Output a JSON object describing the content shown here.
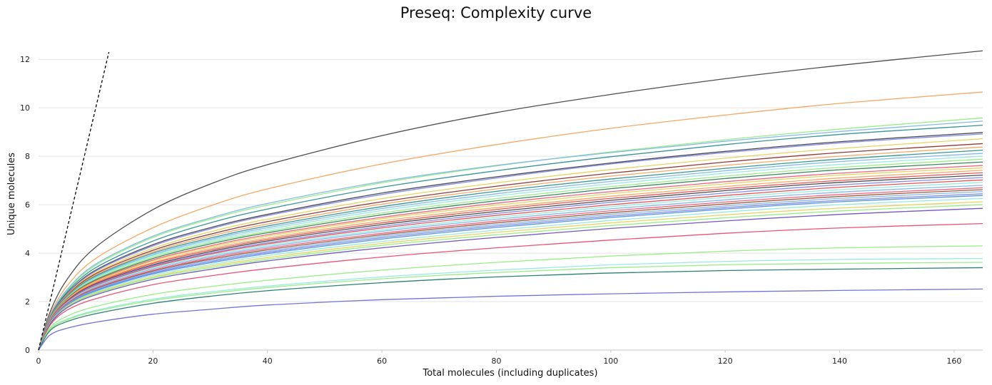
{
  "chart_data": {
    "type": "line",
    "title": "Preseq: Complexity curve",
    "xlabel": "Total molecules (including duplicates)",
    "ylabel": "Unique molecules",
    "xlim": [
      0,
      165
    ],
    "ylim": [
      0,
      12.8
    ],
    "xticks": [
      0,
      20,
      40,
      60,
      80,
      100,
      120,
      140,
      160
    ],
    "yticks": [
      0,
      2,
      4,
      6,
      8,
      10,
      12
    ],
    "grid": "horizontal",
    "x": [
      0,
      2,
      5,
      10,
      20,
      30,
      40,
      60,
      80,
      100,
      120,
      140,
      165
    ],
    "reference_line": {
      "style": "dashed",
      "color": "#000000",
      "x": [
        0,
        12.3
      ],
      "y": [
        0,
        12.3
      ]
    },
    "series": [
      {
        "color": "#444444",
        "values": [
          0,
          1.56,
          2.92,
          4.25,
          5.8,
          6.85,
          7.65,
          8.85,
          9.8,
          10.55,
          11.2,
          11.75,
          12.35
        ]
      },
      {
        "color": "#f7a35c",
        "values": [
          0,
          1.45,
          2.65,
          3.78,
          5.05,
          5.95,
          6.65,
          7.68,
          8.48,
          9.15,
          9.7,
          10.18,
          10.65
        ]
      },
      {
        "color": "#90ed7d",
        "values": [
          0,
          1.38,
          2.45,
          3.5,
          4.65,
          5.4,
          5.98,
          6.9,
          7.6,
          8.18,
          8.68,
          9.12,
          9.58
        ]
      },
      {
        "color": "#7cb5ec",
        "values": [
          0,
          1.4,
          2.5,
          3.55,
          4.7,
          5.45,
          6.05,
          6.95,
          7.62,
          8.15,
          8.62,
          9.02,
          9.45
        ]
      },
      {
        "color": "#2b908f",
        "values": [
          0,
          1.36,
          2.4,
          3.4,
          4.5,
          5.25,
          5.82,
          6.72,
          7.4,
          7.98,
          8.48,
          8.9,
          9.28
        ]
      },
      {
        "color": "#434348",
        "values": [
          0,
          1.34,
          2.34,
          3.3,
          4.35,
          5.05,
          5.6,
          6.48,
          7.15,
          7.72,
          8.2,
          8.6,
          8.98
        ]
      },
      {
        "color": "#8085e9",
        "values": [
          0,
          1.33,
          2.32,
          3.26,
          4.3,
          5.0,
          5.55,
          6.42,
          7.1,
          7.68,
          8.15,
          8.55,
          8.92
        ]
      },
      {
        "color": "#e4d354",
        "values": [
          0,
          1.31,
          2.28,
          3.2,
          4.2,
          4.88,
          5.4,
          6.25,
          6.9,
          7.45,
          7.92,
          8.32,
          8.72
        ]
      },
      {
        "color": "#8b2e2e",
        "values": [
          0,
          1.3,
          2.25,
          3.15,
          4.12,
          4.78,
          5.3,
          6.12,
          6.76,
          7.3,
          7.76,
          8.15,
          8.52
        ]
      },
      {
        "color": "#f7a35c",
        "values": [
          0,
          1.29,
          2.22,
          3.1,
          4.05,
          4.7,
          5.2,
          6.02,
          6.65,
          7.18,
          7.62,
          8.0,
          8.38
        ]
      },
      {
        "color": "#2b908f",
        "values": [
          0,
          1.28,
          2.2,
          3.06,
          4.0,
          4.62,
          5.12,
          5.92,
          6.55,
          7.06,
          7.5,
          7.88,
          8.25
        ]
      },
      {
        "color": "#7cb5ec",
        "values": [
          0,
          1.27,
          2.18,
          3.02,
          3.94,
          4.56,
          5.05,
          5.84,
          6.45,
          6.96,
          7.4,
          7.78,
          8.12
        ]
      },
      {
        "color": "#91e8e1",
        "values": [
          0,
          1.26,
          2.16,
          2.98,
          3.9,
          4.5,
          4.98,
          5.76,
          6.36,
          6.86,
          7.3,
          7.66,
          8.0
        ]
      },
      {
        "color": "#90ed7d",
        "values": [
          0,
          1.25,
          2.14,
          2.94,
          3.84,
          4.44,
          4.9,
          5.66,
          6.25,
          6.75,
          7.18,
          7.54,
          7.88
        ]
      },
      {
        "color": "#2e7d4f",
        "values": [
          0,
          1.24,
          2.12,
          2.9,
          3.78,
          4.38,
          4.84,
          5.58,
          6.16,
          6.66,
          7.08,
          7.44,
          7.76
        ]
      },
      {
        "color": "#f15c80",
        "values": [
          0,
          1.23,
          2.1,
          2.86,
          3.72,
          4.3,
          4.76,
          5.48,
          6.06,
          6.54,
          6.95,
          7.3,
          7.62
        ]
      },
      {
        "color": "#e4d354",
        "values": [
          0,
          1.22,
          2.08,
          2.83,
          3.68,
          4.25,
          4.7,
          5.42,
          5.98,
          6.46,
          6.86,
          7.22,
          7.52
        ]
      },
      {
        "color": "#f7a35c",
        "values": [
          0,
          1.21,
          2.06,
          2.8,
          3.62,
          4.18,
          4.62,
          5.33,
          5.88,
          6.35,
          6.75,
          7.1,
          7.42
        ]
      },
      {
        "color": "#e84a4a",
        "values": [
          0,
          1.2,
          2.04,
          2.76,
          3.58,
          4.12,
          4.56,
          5.25,
          5.8,
          6.26,
          6.66,
          7.0,
          7.32
        ]
      },
      {
        "color": "#434348",
        "values": [
          0,
          1.19,
          2.02,
          2.73,
          3.52,
          4.06,
          4.5,
          5.18,
          5.72,
          6.18,
          6.58,
          6.92,
          7.22
        ]
      },
      {
        "color": "#8085e9",
        "values": [
          0,
          1.18,
          2.0,
          2.7,
          3.48,
          4.0,
          4.43,
          5.1,
          5.64,
          6.1,
          6.48,
          6.82,
          7.12
        ]
      },
      {
        "color": "#e84a4a",
        "values": [
          0,
          1.17,
          1.98,
          2.66,
          3.44,
          3.96,
          4.38,
          5.04,
          5.56,
          6.0,
          6.38,
          6.72,
          7.02
        ]
      },
      {
        "color": "#91e8e1",
        "values": [
          0,
          1.16,
          1.96,
          2.63,
          3.4,
          3.9,
          4.32,
          4.96,
          5.48,
          5.92,
          6.3,
          6.62,
          6.92
        ]
      },
      {
        "color": "#7cb5ec",
        "values": [
          0,
          1.15,
          1.94,
          2.6,
          3.35,
          3.85,
          4.26,
          4.9,
          5.4,
          5.83,
          6.2,
          6.52,
          6.8
        ]
      },
      {
        "color": "#f15c80",
        "values": [
          0,
          1.14,
          1.92,
          2.56,
          3.3,
          3.8,
          4.2,
          4.82,
          5.32,
          5.75,
          6.11,
          6.42,
          6.7
        ]
      },
      {
        "color": "#a0522d",
        "values": [
          0,
          1.13,
          1.9,
          2.53,
          3.26,
          3.75,
          4.14,
          4.76,
          5.25,
          5.67,
          6.03,
          6.34,
          6.62
        ]
      },
      {
        "color": "#7cb5ec",
        "values": [
          0,
          1.12,
          1.88,
          2.5,
          3.22,
          3.7,
          4.08,
          4.7,
          5.18,
          5.6,
          5.95,
          6.26,
          6.54
        ]
      },
      {
        "color": "#8085e9",
        "values": [
          0,
          1.11,
          1.86,
          2.47,
          3.18,
          3.65,
          4.03,
          4.64,
          5.12,
          5.53,
          5.88,
          6.18,
          6.45
        ]
      },
      {
        "color": "#4a90e2",
        "values": [
          0,
          1.1,
          1.84,
          2.44,
          3.14,
          3.6,
          3.98,
          4.58,
          5.06,
          5.47,
          5.82,
          6.12,
          6.38
        ]
      },
      {
        "color": "#91e8e1",
        "values": [
          0,
          1.09,
          1.82,
          2.4,
          3.08,
          3.52,
          3.9,
          4.48,
          4.95,
          5.35,
          5.7,
          6.0,
          6.26
        ]
      },
      {
        "color": "#e4d354",
        "values": [
          0,
          1.08,
          1.8,
          2.36,
          3.02,
          3.46,
          3.82,
          4.4,
          4.86,
          5.25,
          5.58,
          5.86,
          6.12
        ]
      },
      {
        "color": "#90ed7d",
        "values": [
          0,
          1.07,
          1.78,
          2.33,
          2.98,
          3.4,
          3.75,
          4.32,
          4.76,
          5.14,
          5.46,
          5.74,
          6.0
        ]
      },
      {
        "color": "#6a4fbf",
        "values": [
          0,
          1.06,
          1.75,
          2.28,
          2.92,
          3.33,
          3.68,
          4.22,
          4.65,
          5.02,
          5.33,
          5.6,
          5.85
        ]
      },
      {
        "color": "#e84a6f",
        "values": [
          0,
          1.02,
          1.65,
          2.12,
          2.7,
          3.06,
          3.36,
          3.84,
          4.22,
          4.54,
          4.82,
          5.04,
          5.22
        ]
      },
      {
        "color": "#90ed7d",
        "values": [
          0,
          0.92,
          1.4,
          1.8,
          2.3,
          2.62,
          2.88,
          3.3,
          3.62,
          3.88,
          4.08,
          4.22,
          4.3
        ]
      },
      {
        "color": "#91e8e1",
        "values": [
          0,
          0.86,
          1.28,
          1.64,
          2.1,
          2.4,
          2.64,
          3.02,
          3.3,
          3.52,
          3.66,
          3.74,
          3.78
        ]
      },
      {
        "color": "#90ed7d",
        "values": [
          0,
          0.85,
          1.25,
          1.6,
          2.05,
          2.34,
          2.58,
          2.94,
          3.2,
          3.4,
          3.52,
          3.58,
          3.62
        ]
      },
      {
        "color": "#1f7a6a",
        "values": [
          0,
          0.8,
          1.18,
          1.5,
          1.93,
          2.22,
          2.45,
          2.78,
          3.02,
          3.18,
          3.28,
          3.34,
          3.4
        ]
      },
      {
        "color": "#6b6bd6",
        "values": [
          0,
          0.62,
          0.9,
          1.15,
          1.48,
          1.68,
          1.86,
          2.08,
          2.22,
          2.32,
          2.4,
          2.46,
          2.52
        ]
      }
    ]
  }
}
